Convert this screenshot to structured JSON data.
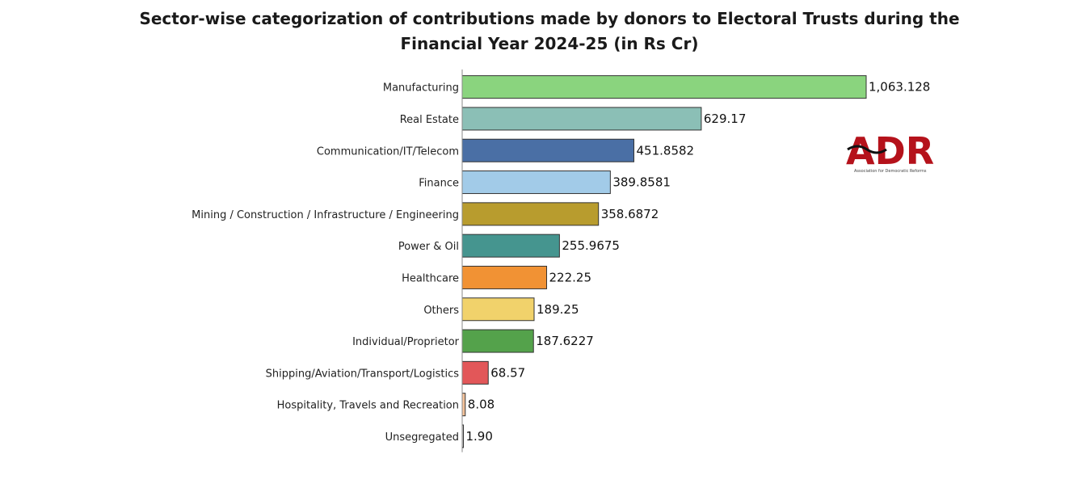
{
  "chart_data": {
    "type": "bar",
    "orientation": "horizontal",
    "title": "Sector-wise categorization of contributions made by donors to Electoral Trusts during the Financial Year 2024-25 (in Rs Cr)",
    "xlabel": "",
    "ylabel": "",
    "xlim": [
      0,
      1100
    ],
    "grid": false,
    "categories": [
      "Manufacturing",
      "Real Estate",
      "Communication/IT/Telecom",
      "Finance",
      "Mining / Construction / Infrastructure / Engineering",
      "Power & Oil",
      "Healthcare",
      "Others",
      "Individual/Proprietor",
      "Shipping/Aviation/Transport/Logistics",
      "Hospitality, Travels and Recreation",
      "Unsegregated"
    ],
    "values": [
      1063.128,
      629.17,
      451.8582,
      389.8581,
      358.6872,
      255.9675,
      222.25,
      189.25,
      187.6227,
      68.57,
      8.08,
      1.9
    ],
    "value_labels": [
      "1,063.128",
      "629.17",
      "451.8582",
      "389.8581",
      "358.6872",
      "255.9675",
      "222.25",
      "189.25",
      "187.6227",
      "68.57",
      "8.08",
      "1.90"
    ],
    "colors": [
      "#8ad47e",
      "#8bbfb6",
      "#4a6fa5",
      "#a2cbe8",
      "#b89c2e",
      "#45958f",
      "#f19234",
      "#f1d26b",
      "#54a24b",
      "#e25759",
      "#f5c29a",
      "#cfcfcf"
    ]
  },
  "logo": {
    "text": "ADR",
    "subtitle": "Association for Democratic Reforms",
    "color": "#b5121b"
  }
}
